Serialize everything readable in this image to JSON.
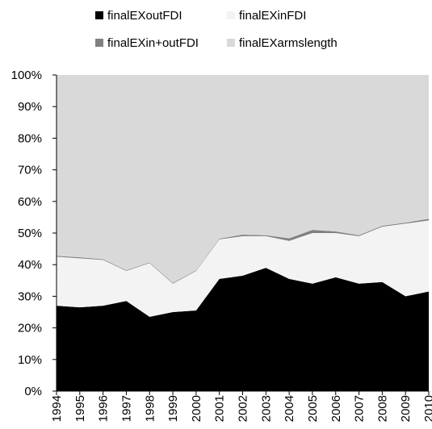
{
  "chart_data": {
    "type": "area",
    "stacked": true,
    "percent": true,
    "x": [
      "1994",
      "1995",
      "1996",
      "1997",
      "1998",
      "1999",
      "2000",
      "2001",
      "2002",
      "2003",
      "2004",
      "2005",
      "2006",
      "2007",
      "2008",
      "2009",
      "2010"
    ],
    "series": [
      {
        "name": "finalEXoutFDI",
        "color": "#000000",
        "values": [
          27,
          26.5,
          27,
          28.5,
          23.5,
          25,
          25.5,
          35.5,
          36.5,
          39,
          35.5,
          34,
          36,
          34,
          34.5,
          30,
          31.5
        ]
      },
      {
        "name": "finalEXinFDI",
        "color": "#f3f3f3",
        "values": [
          15.5,
          15.5,
          14.5,
          9.5,
          17,
          9,
          12.5,
          12.5,
          12.5,
          10,
          12,
          16,
          14,
          15,
          17.5,
          23,
          22.5
        ]
      },
      {
        "name": "finalEXin+outFDI",
        "color": "#808080",
        "values": [
          0.3,
          0.3,
          0.2,
          0.2,
          0.2,
          0.2,
          0.2,
          0.2,
          0.5,
          0.3,
          0.8,
          1,
          0.5,
          0.3,
          0.3,
          0.3,
          0.5
        ]
      },
      {
        "name": "finalEXarmslength",
        "color": "#d9d9d9",
        "values": [
          57.2,
          57.7,
          58.3,
          61.8,
          59.3,
          65.8,
          61.8,
          51.8,
          50.5,
          50.7,
          51.7,
          49,
          49.5,
          50.7,
          47.7,
          46.7,
          45.5
        ]
      }
    ],
    "y_ticks": [
      "0%",
      "10%",
      "20%",
      "30%",
      "40%",
      "50%",
      "60%",
      "70%",
      "80%",
      "90%",
      "100%"
    ],
    "ylim": [
      0,
      100
    ],
    "legend_position": "top",
    "grid": false
  }
}
